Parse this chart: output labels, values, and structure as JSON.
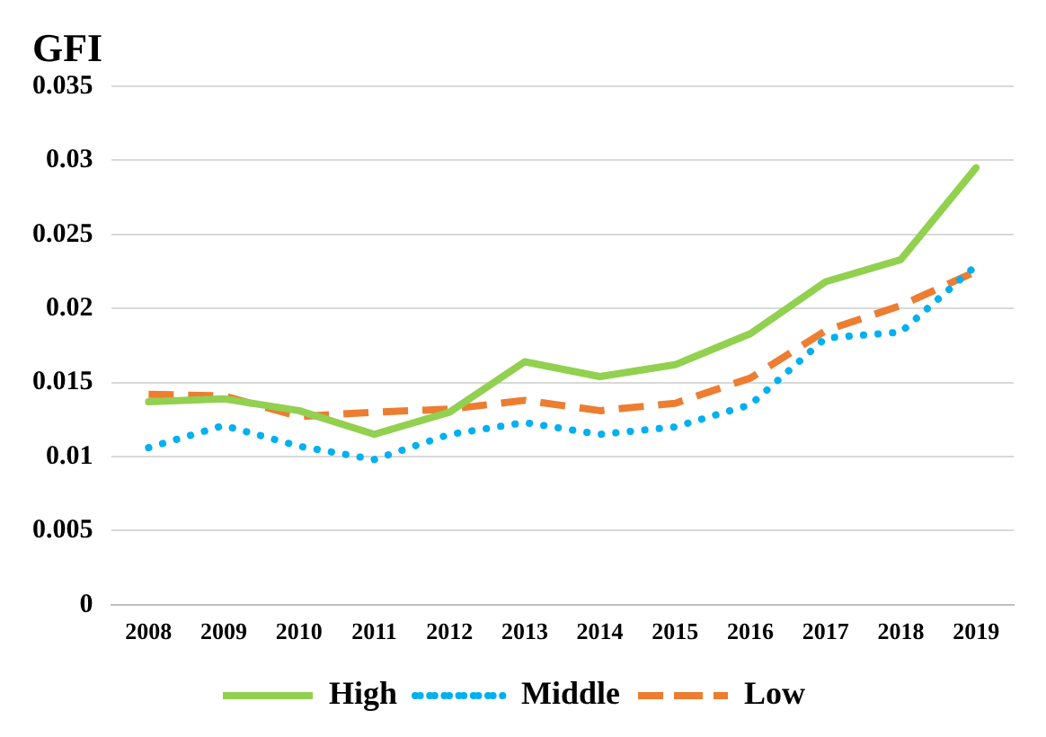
{
  "chart_data": {
    "type": "line",
    "title": "GFI",
    "categories": [
      "2008",
      "2009",
      "2010",
      "2011",
      "2012",
      "2013",
      "2014",
      "2015",
      "2016",
      "2017",
      "2018",
      "2019"
    ],
    "series": [
      {
        "name": "High",
        "color": "#92d050",
        "line_style": "solid",
        "values": [
          0.0137,
          0.0139,
          0.0131,
          0.0115,
          0.013,
          0.0164,
          0.0154,
          0.0162,
          0.0183,
          0.0218,
          0.0233,
          0.0295
        ]
      },
      {
        "name": "Middle",
        "color": "#00b0f0",
        "line_style": "dotted",
        "values": [
          0.0106,
          0.0121,
          0.0107,
          0.0098,
          0.0115,
          0.0123,
          0.0115,
          0.012,
          0.0135,
          0.018,
          0.0184,
          0.0229
        ]
      },
      {
        "name": "Low",
        "color": "#ed7d31",
        "line_style": "dashed",
        "values": [
          0.0142,
          0.0141,
          0.0127,
          0.013,
          0.0132,
          0.0138,
          0.0131,
          0.0136,
          0.0153,
          0.0185,
          0.0202,
          0.0225
        ]
      }
    ],
    "ylim": [
      0,
      0.035
    ],
    "yticks": [
      0,
      0.005,
      0.01,
      0.015,
      0.02,
      0.025,
      0.03,
      0.035
    ],
    "grid": "y",
    "legend": "bottom",
    "marker": "none"
  }
}
